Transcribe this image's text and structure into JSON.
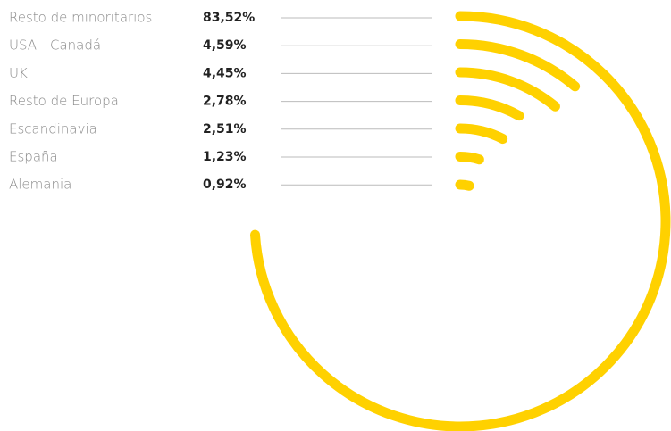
{
  "chart_data": {
    "type": "radial-bar",
    "categories": [
      "Resto de minoritarios",
      "USA - Canadá",
      "UK",
      "Resto de Europa",
      "Escandinavia",
      "España",
      "Alemania"
    ],
    "values": [
      83.52,
      4.59,
      4.45,
      2.78,
      2.51,
      1.23,
      0.92
    ],
    "value_labels": [
      "83,52%",
      "4,59%",
      "4,45%",
      "2,78%",
      "2,51%",
      "1,23%",
      "0,92%"
    ],
    "color": "#ffd100"
  }
}
